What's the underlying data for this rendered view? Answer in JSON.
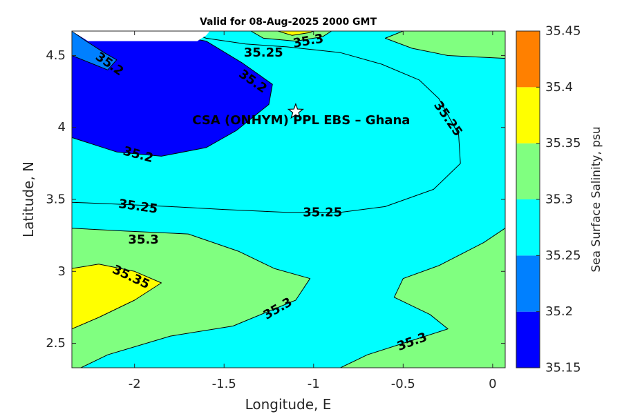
{
  "chart_data": {
    "type": "contour",
    "title": "Valid for 08-Aug-2025 2000 GMT",
    "xlabel": "Longitude, E",
    "ylabel": "Latitude, N",
    "xlim": [
      -2.35,
      0.07
    ],
    "ylim": [
      2.33,
      4.67
    ],
    "x_ticks": [
      {
        "v": -2,
        "label": "-2"
      },
      {
        "v": -1.5,
        "label": "-1.5"
      },
      {
        "v": -1,
        "label": "-1"
      },
      {
        "v": -0.5,
        "label": "-0.5"
      },
      {
        "v": 0,
        "label": "0"
      }
    ],
    "y_ticks": [
      {
        "v": 2.5,
        "label": "2.5"
      },
      {
        "v": 3,
        "label": "3"
      },
      {
        "v": 3.5,
        "label": "3.5"
      },
      {
        "v": 4,
        "label": "4"
      },
      {
        "v": 4.5,
        "label": "4.5"
      }
    ],
    "colorbar": {
      "label": "Sea Surface Salinity, psu",
      "range": [
        35.15,
        35.45
      ],
      "ticks": [
        {
          "v": 35.15,
          "label": "35.15"
        },
        {
          "v": 35.2,
          "label": "35.2"
        },
        {
          "v": 35.25,
          "label": "35.25"
        },
        {
          "v": 35.3,
          "label": "35.3"
        },
        {
          "v": 35.35,
          "label": "35.35"
        },
        {
          "v": 35.4,
          "label": "35.4"
        },
        {
          "v": 35.45,
          "label": "35.45"
        }
      ],
      "bands": [
        {
          "from": 35.15,
          "to": 35.2,
          "color": "#0000ff"
        },
        {
          "from": 35.2,
          "to": 35.25,
          "color": "#0080ff"
        },
        {
          "from": 35.25,
          "to": 35.3,
          "color": "#00ffff"
        },
        {
          "from": 35.3,
          "to": 35.35,
          "color": "#80ff80"
        },
        {
          "from": 35.35,
          "to": 35.4,
          "color": "#ffff00"
        },
        {
          "from": 35.4,
          "to": 35.45,
          "color": "#ff8000"
        }
      ]
    },
    "regions": [
      {
        "name": "low-salinity-core",
        "level": 35.15,
        "color": "#0000ff",
        "points": [
          [
            -2.35,
            4.67
          ],
          [
            -2.08,
            4.67
          ],
          [
            -1.9,
            4.67
          ],
          [
            -1.6,
            4.6
          ],
          [
            -1.4,
            4.45
          ],
          [
            -1.23,
            4.3
          ],
          [
            -1.25,
            4.16
          ],
          [
            -1.43,
            3.98
          ],
          [
            -1.6,
            3.86
          ],
          [
            -1.85,
            3.8
          ],
          [
            -2.1,
            3.83
          ],
          [
            -2.35,
            3.93
          ]
        ]
      },
      {
        "name": "nw-pocket",
        "level": 35.2,
        "color": "#0080ff",
        "points": [
          [
            -2.35,
            4.67
          ],
          [
            -2.27,
            4.6
          ],
          [
            -2.17,
            4.52
          ],
          [
            -2.1,
            4.47
          ],
          [
            -2.15,
            4.4
          ],
          [
            -2.25,
            4.45
          ],
          [
            -2.35,
            4.5
          ]
        ]
      },
      {
        "name": "moderate-salinity-zone",
        "level": 35.25,
        "color": "#00ffff",
        "points": [
          [
            -2.35,
            4.17
          ],
          [
            -2.35,
            3.48
          ],
          [
            -2.15,
            3.47
          ],
          [
            -1.8,
            3.45
          ],
          [
            -1.5,
            3.43
          ],
          [
            -1.15,
            3.41
          ],
          [
            -0.85,
            3.41
          ],
          [
            -0.6,
            3.45
          ],
          [
            -0.33,
            3.57
          ],
          [
            -0.18,
            3.75
          ],
          [
            -0.19,
            3.95
          ],
          [
            -0.3,
            4.2
          ],
          [
            -0.41,
            4.33
          ],
          [
            -0.62,
            4.44
          ],
          [
            -0.85,
            4.52
          ],
          [
            -1.15,
            4.56
          ],
          [
            -1.38,
            4.58
          ],
          [
            -1.6,
            4.62
          ],
          [
            -1.7,
            4.67
          ],
          [
            -2.1,
            4.67
          ],
          [
            -2.35,
            4.67
          ]
        ]
      },
      {
        "name": "south-high-zone",
        "level": 35.3,
        "color": "#80ff80",
        "points": [
          [
            -2.35,
            2.33
          ],
          [
            -2.35,
            3.3
          ],
          [
            -2.05,
            3.28
          ],
          [
            -1.7,
            3.26
          ],
          [
            -1.42,
            3.14
          ],
          [
            -1.22,
            3.02
          ],
          [
            -1.02,
            2.95
          ],
          [
            -1.1,
            2.8
          ],
          [
            -1.45,
            2.62
          ],
          [
            -1.8,
            2.55
          ],
          [
            -2.15,
            2.42
          ],
          [
            -2.3,
            2.33
          ]
        ]
      },
      {
        "name": "se-high-zone",
        "level": 35.3,
        "color": "#80ff80",
        "points": [
          [
            0.07,
            3.3
          ],
          [
            -0.05,
            3.2
          ],
          [
            -0.3,
            3.04
          ],
          [
            -0.5,
            2.95
          ],
          [
            -0.55,
            2.82
          ],
          [
            -0.35,
            2.7
          ],
          [
            -0.25,
            2.6
          ],
          [
            -0.45,
            2.52
          ],
          [
            -0.7,
            2.42
          ],
          [
            -0.85,
            2.33
          ],
          [
            0.07,
            2.33
          ]
        ]
      },
      {
        "name": "ne-high-zone",
        "level": 35.3,
        "color": "#80ff80",
        "points": [
          [
            0.07,
            4.67
          ],
          [
            -0.5,
            4.67
          ],
          [
            -0.6,
            4.62
          ],
          [
            -0.45,
            4.55
          ],
          [
            -0.25,
            4.5
          ],
          [
            0.07,
            4.48
          ]
        ]
      },
      {
        "name": "n-high-zone",
        "level": 35.3,
        "color": "#80ff80",
        "points": [
          [
            -1.35,
            4.67
          ],
          [
            -1.28,
            4.62
          ],
          [
            -1.1,
            4.6
          ],
          [
            -0.95,
            4.63
          ],
          [
            -0.9,
            4.67
          ]
        ]
      },
      {
        "name": "yellow-core",
        "level": 35.35,
        "color": "#ffff00",
        "points": [
          [
            -2.35,
            3.02
          ],
          [
            -2.2,
            3.05
          ],
          [
            -2.0,
            3.0
          ],
          [
            -1.85,
            2.92
          ],
          [
            -2.0,
            2.8
          ],
          [
            -2.2,
            2.68
          ],
          [
            -2.35,
            2.6
          ]
        ]
      },
      {
        "name": "n-yellow-core",
        "level": 35.35,
        "color": "#ffff00",
        "points": [
          [
            -1.2,
            4.67
          ],
          [
            -1.12,
            4.64
          ],
          [
            -1.02,
            4.66
          ],
          [
            -1.0,
            4.67
          ]
        ]
      },
      {
        "name": "nodata-top",
        "level": null,
        "color": "#ffffff",
        "points": [
          [
            -2.35,
            4.67
          ],
          [
            -2.26,
            4.6
          ],
          [
            -1.65,
            4.6
          ],
          [
            -1.6,
            4.64
          ],
          [
            -1.58,
            4.67
          ]
        ]
      }
    ],
    "contour_labels": [
      {
        "text": "35.3",
        "x": -1.03,
        "y": 4.6,
        "rotate": -10
      },
      {
        "text": "35.25",
        "x": -1.28,
        "y": 4.52,
        "rotate": 0
      },
      {
        "text": "35.2",
        "x": -2.14,
        "y": 4.44,
        "rotate": 35
      },
      {
        "text": "35.2",
        "x": -1.34,
        "y": 4.32,
        "rotate": 35
      },
      {
        "text": "35.25",
        "x": -0.25,
        "y": 4.06,
        "rotate": 55
      },
      {
        "text": "35.2",
        "x": -1.98,
        "y": 3.81,
        "rotate": 15
      },
      {
        "text": "35.25",
        "x": -1.98,
        "y": 3.45,
        "rotate": 8
      },
      {
        "text": "35.25",
        "x": -0.95,
        "y": 3.41,
        "rotate": 0
      },
      {
        "text": "35.3",
        "x": -1.95,
        "y": 3.22,
        "rotate": 0
      },
      {
        "text": "35.35",
        "x": -2.02,
        "y": 2.96,
        "rotate": 25
      },
      {
        "text": "35.3",
        "x": -1.2,
        "y": 2.74,
        "rotate": -30
      },
      {
        "text": "35.3",
        "x": -0.45,
        "y": 2.51,
        "rotate": -20
      }
    ],
    "marker": {
      "label": "CSA (ONHYM) PPL EBS  – Ghana",
      "x": -1.1,
      "y": 4.11,
      "symbol": "star"
    }
  }
}
